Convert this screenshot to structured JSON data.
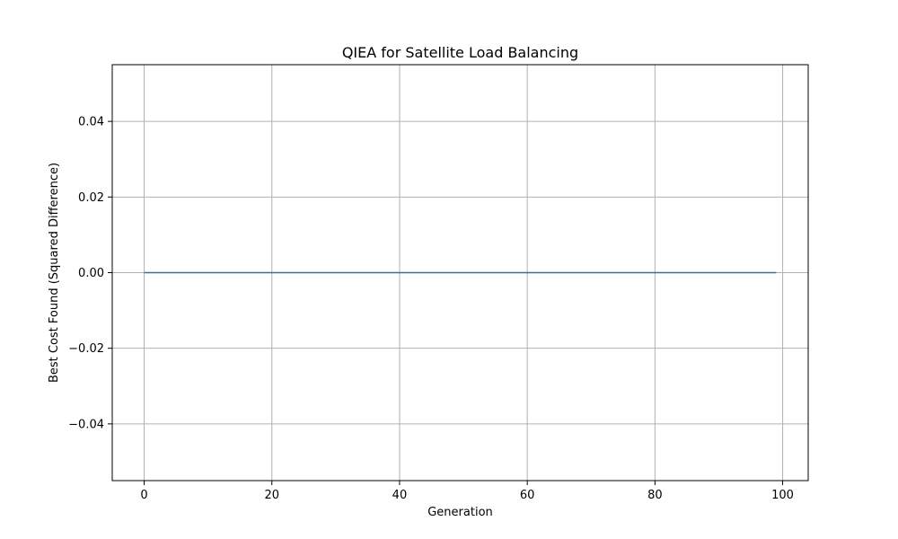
{
  "chart_data": {
    "type": "line",
    "title": "QIEA for Satellite Load Balancing",
    "xlabel": "Generation",
    "ylabel": "Best Cost Found (Squared Difference)",
    "xlim": [
      -5,
      104
    ],
    "ylim": [
      -0.055,
      0.055
    ],
    "x_ticks": [
      0,
      20,
      40,
      60,
      80,
      100
    ],
    "x_tick_labels": [
      "0",
      "20",
      "40",
      "60",
      "80",
      "100"
    ],
    "y_ticks": [
      -0.04,
      -0.02,
      0.0,
      0.02,
      0.04
    ],
    "y_tick_labels": [
      "−0.04",
      "−0.02",
      "0.00",
      "0.02",
      "0.04"
    ],
    "grid": true,
    "series": [
      {
        "x": [
          0,
          99
        ],
        "values": [
          0.0,
          0.0
        ],
        "color": "#1f77b4"
      }
    ],
    "colors": {
      "grid": "#b0b0b0",
      "axes": "#000000",
      "line": "#1f77b4"
    }
  }
}
